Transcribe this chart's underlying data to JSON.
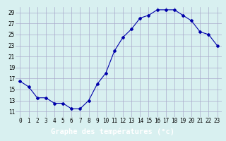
{
  "hours": [
    0,
    1,
    2,
    3,
    4,
    5,
    6,
    7,
    8,
    9,
    10,
    11,
    12,
    13,
    14,
    15,
    16,
    17,
    18,
    19,
    20,
    21,
    22,
    23
  ],
  "temperatures": [
    16.5,
    15.5,
    13.5,
    13.5,
    12.5,
    12.5,
    11.5,
    11.5,
    13.0,
    16.0,
    18.0,
    22.0,
    24.5,
    26.0,
    28.0,
    28.5,
    29.5,
    29.5,
    29.5,
    28.5,
    27.5,
    25.5,
    25.0,
    23.0
  ],
  "line_color": "#0000aa",
  "marker": "D",
  "marker_size": 2,
  "bg_color": "#d8f0f0",
  "grid_color": "#aaaacc",
  "xlabel": "Graphe des températures (°c)",
  "xlabel_color": "#ffffff",
  "xlabel_bg": "#0000aa",
  "ylim": [
    10,
    30
  ],
  "yticks": [
    11,
    13,
    15,
    17,
    19,
    21,
    23,
    25,
    27,
    29
  ],
  "xticks": [
    0,
    1,
    2,
    3,
    4,
    5,
    6,
    7,
    8,
    9,
    10,
    11,
    12,
    13,
    14,
    15,
    16,
    17,
    18,
    19,
    20,
    21,
    22,
    23
  ],
  "tick_fontsize": 5.5,
  "xlabel_fontsize": 7.5
}
